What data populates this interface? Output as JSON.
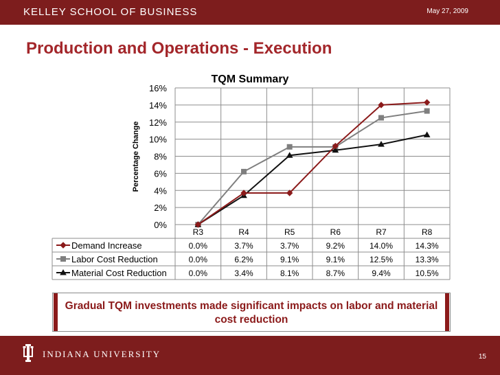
{
  "header": {
    "school": "KELLEY SCHOOL OF BUSINESS",
    "date": "May 27, 2009"
  },
  "slide": {
    "title": "Production and Operations - Execution",
    "takeaway": "Gradual TQM investments made significant impacts on labor and material cost reduction",
    "page": "15"
  },
  "footer": {
    "university": "INDIANA UNIVERSITY"
  },
  "chart_data": {
    "type": "line",
    "title": "TQM Summary",
    "ylabel": "Percentage Change",
    "xlabel": "",
    "ylim": [
      0,
      16
    ],
    "yticks": [
      0,
      2,
      4,
      6,
      8,
      10,
      12,
      14,
      16
    ],
    "categories": [
      "R3",
      "R4",
      "R5",
      "R6",
      "R7",
      "R8"
    ],
    "series": [
      {
        "name": "Demand Increase",
        "values": [
          0.0,
          3.7,
          3.7,
          9.2,
          14.0,
          14.3
        ],
        "labels": [
          "0.0%",
          "3.7%",
          "3.7%",
          "9.2%",
          "14.0%",
          "14.3%"
        ],
        "color": "#8b1a1a",
        "marker": "diamond"
      },
      {
        "name": "Labor Cost Reduction",
        "values": [
          0.0,
          6.2,
          9.1,
          9.1,
          12.5,
          13.3
        ],
        "labels": [
          "0.0%",
          "6.2%",
          "9.1%",
          "9.1%",
          "12.5%",
          "13.3%"
        ],
        "color": "#7f7f7f",
        "marker": "square"
      },
      {
        "name": "Material Cost Reduction",
        "values": [
          0.0,
          3.4,
          8.1,
          8.7,
          9.4,
          10.5
        ],
        "labels": [
          "0.0%",
          "3.4%",
          "8.1%",
          "8.7%",
          "9.4%",
          "10.5%"
        ],
        "color": "#111111",
        "marker": "triangle"
      }
    ],
    "legend": "data-table-left",
    "grid": true
  }
}
